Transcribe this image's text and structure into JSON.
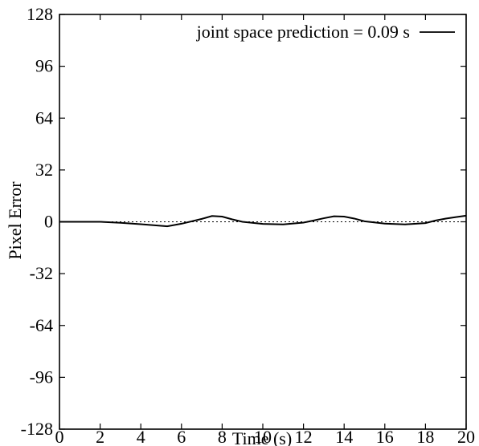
{
  "chart_data": {
    "type": "line",
    "title": "",
    "xlabel": "Time (s)",
    "ylabel": "Pixel Error",
    "xlim": [
      0,
      20
    ],
    "ylim": [
      -128,
      128
    ],
    "x_ticks": [
      0,
      2,
      4,
      6,
      8,
      10,
      12,
      14,
      16,
      18,
      20
    ],
    "y_ticks": [
      128,
      96,
      64,
      32,
      0,
      -32,
      -64,
      -96,
      -128
    ],
    "x_tick_labels": [
      "0",
      "2",
      "4",
      "6",
      "8",
      "10",
      "12",
      "14",
      "16",
      "18",
      "20"
    ],
    "y_tick_labels": [
      "128",
      "96",
      "64",
      "32",
      "0",
      "-32",
      "-64",
      "-96",
      "-128"
    ],
    "grid": false,
    "legend_position": "top-right",
    "reference_line": {
      "y": 0,
      "style": "dotted"
    },
    "series": [
      {
        "name": "joint space prediction = 0.09 s",
        "color": "#000000",
        "x": [
          0,
          1,
          2,
          3,
          4,
          5,
          5.3,
          6,
          7,
          7.5,
          8,
          8.5,
          9,
          10,
          11,
          12,
          12.5,
          13,
          13.5,
          14,
          14.5,
          15,
          16,
          17,
          18,
          18.5,
          19,
          19.5,
          20
        ],
        "y": [
          0,
          0,
          0,
          -0.6,
          -1.5,
          -2.5,
          -2.8,
          -1.2,
          1.8,
          3.6,
          3.2,
          1.5,
          0,
          -1.3,
          -1.6,
          -0.5,
          0.8,
          2.2,
          3.4,
          3.2,
          2,
          0.3,
          -1.1,
          -1.6,
          -0.8,
          0.8,
          2,
          2.9,
          3.8
        ]
      }
    ]
  }
}
